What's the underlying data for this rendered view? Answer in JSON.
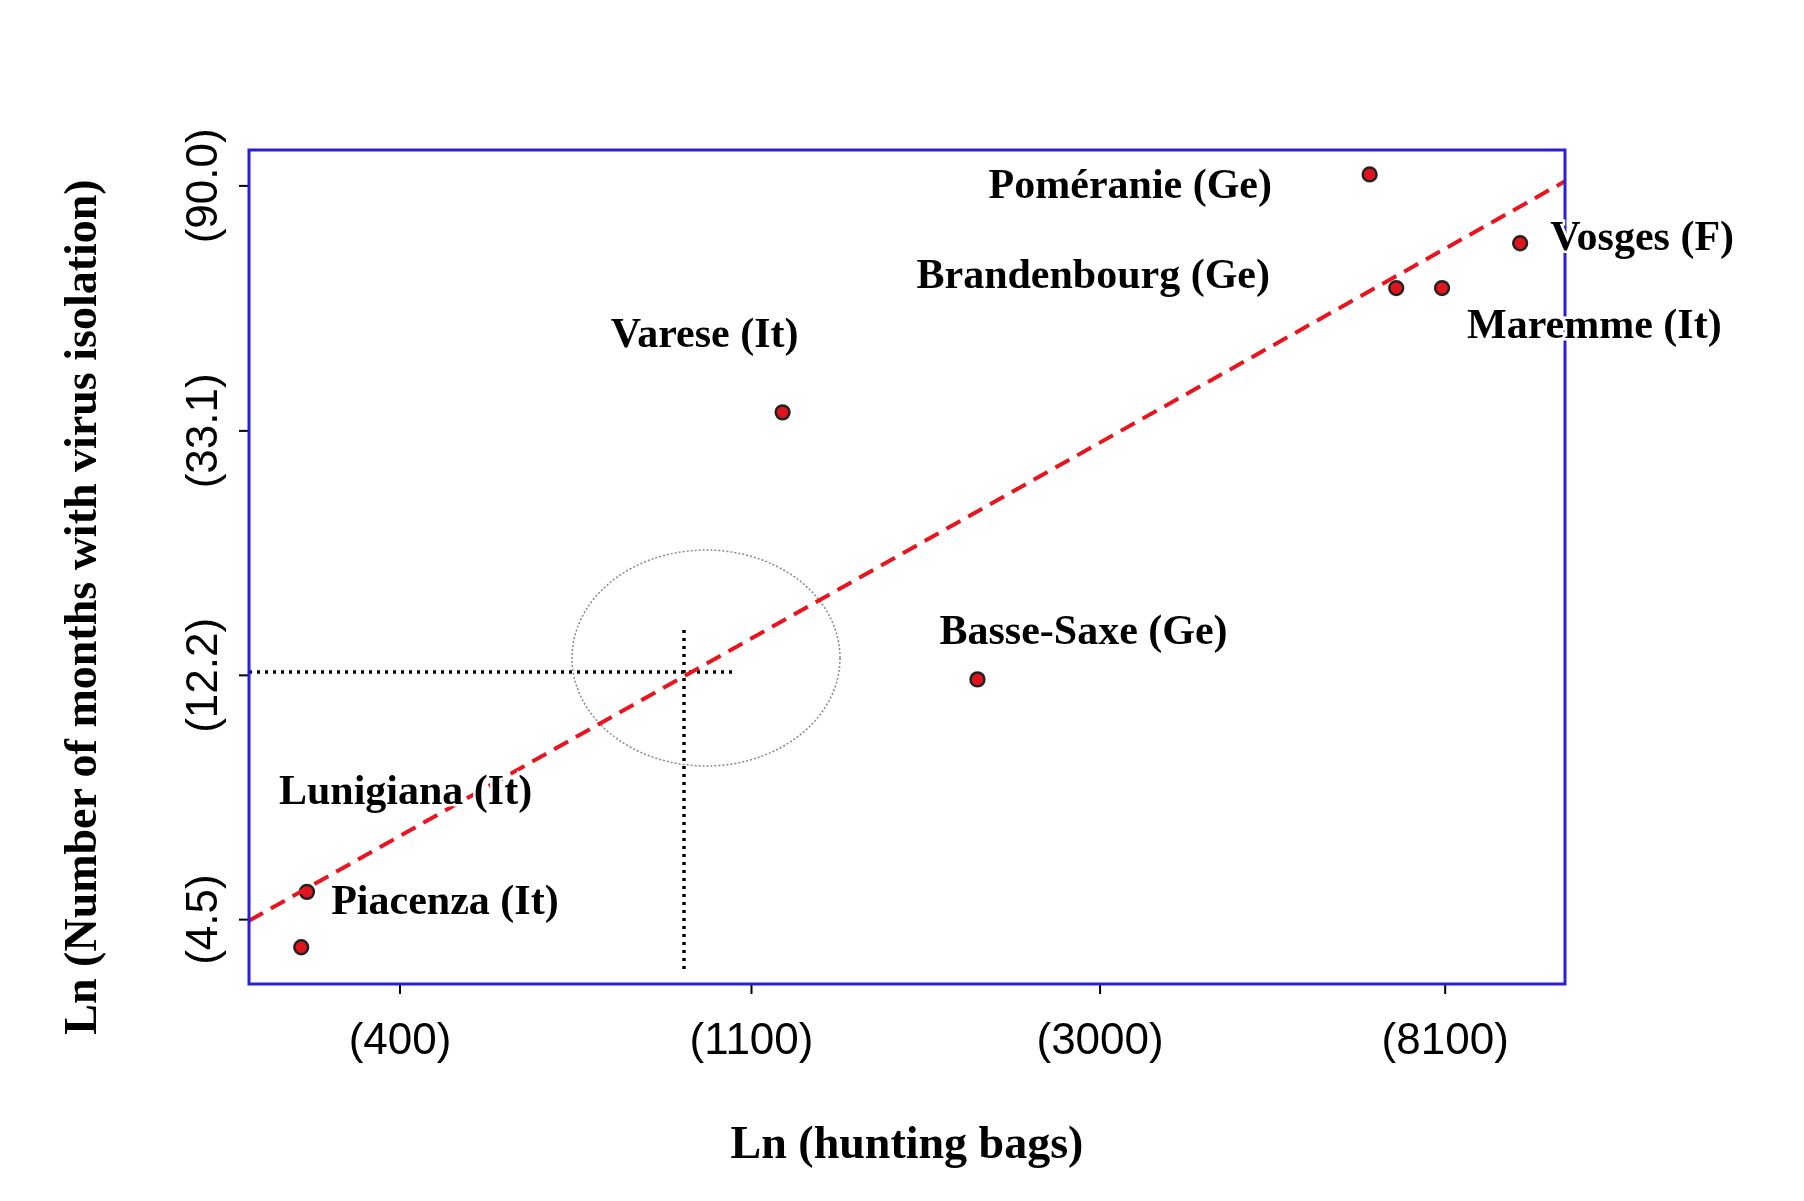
{
  "chart_data": {
    "type": "scatter",
    "xlabel": "Ln (hunting bags)",
    "ylabel": "Ln (Number of months with virus isolation)",
    "log": "xy",
    "xlim": [
      259,
      11435
    ],
    "ylim": [
      3.46,
      104.2
    ],
    "xticks": [
      {
        "value": 400,
        "label": "(400)"
      },
      {
        "value": 1100,
        "label": "(1100)"
      },
      {
        "value": 3000,
        "label": "(3000)"
      },
      {
        "value": 8100,
        "label": "(8100)"
      }
    ],
    "yticks": [
      {
        "value": 4.5,
        "label": "(4.5)"
      },
      {
        "value": 12.2,
        "label": "(12.2)"
      },
      {
        "value": 33.1,
        "label": "(33.1)"
      },
      {
        "value": 90.0,
        "label": "(90.0)"
      }
    ],
    "grid": false,
    "marker": "circle",
    "series": [
      {
        "color": "#e0141e",
        "x": [
          301,
          306,
          1203,
          2108,
          6517,
          7035,
          8027,
          10050
        ],
        "values": [
          4.02,
          5.04,
          35.7,
          12.0,
          94.3,
          59.3,
          59.3,
          71.2
        ]
      },
      {
        "type": "line",
        "marker": "none",
        "color": "#e8141e",
        "line_style": "dashed",
        "x": [
          259,
          11435
        ],
        "values": [
          4.48,
          91.7
        ]
      }
    ],
    "annotations": [
      {
        "text": "Piacenza (It)",
        "x": 301,
        "y": 4.02
      },
      {
        "text": "Lunigiana (It)",
        "x": 306,
        "y": 5.04
      },
      {
        "text": "Varese (It)",
        "x": 1203,
        "y": 35.7
      },
      {
        "text": "Basse-Saxe (Ge)",
        "x": 2108,
        "y": 12.0
      },
      "Poméranie (Ge)",
      "Brandenbourg (Ge)",
      {
        "text": "Maremme (It)",
        "x": 8027,
        "y": 59.3
      },
      {
        "text": "Vosges (F)",
        "x": 10050,
        "y": 71.2
      }
    ]
  }
}
